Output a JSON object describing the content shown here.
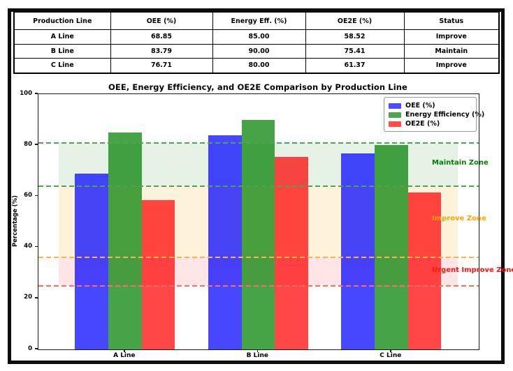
{
  "table": {
    "headers": [
      "Production Line",
      "OEE (%)",
      "Energy Eff. (%)",
      "OE2E (%)",
      "Status"
    ],
    "rows": [
      [
        "A Line",
        "68.85",
        "85.00",
        "58.52",
        "Improve"
      ],
      [
        "B Line",
        "83.79",
        "90.00",
        "75.41",
        "Maintain"
      ],
      [
        "C Line",
        "76.71",
        "80.00",
        "61.37",
        "Improve"
      ]
    ]
  },
  "chart_data": {
    "type": "bar",
    "title": "OEE, Energy Efficiency, and OE2E Comparison by Production Line",
    "xlabel": "",
    "ylabel": "Percentage (%)",
    "categories": [
      "A Line",
      "B Line",
      "C Line"
    ],
    "series": [
      {
        "name": "OEE (%)",
        "values": [
          68.85,
          83.79,
          76.71
        ],
        "bar_color": "rgba(0,0,255,0.72)",
        "legend_color": "#4d4dff"
      },
      {
        "name": "Energy Efficiency (%)",
        "values": [
          85.0,
          90.0,
          80.0
        ],
        "bar_color": "rgba(0,128,0,0.72)",
        "legend_color": "#4da64d"
      },
      {
        "name": "OE2E (%)",
        "values": [
          58.52,
          75.41,
          61.37
        ],
        "bar_color": "rgba(255,0,0,0.72)",
        "legend_color": "#ff4d4d"
      }
    ],
    "ylim": [
      0,
      100
    ],
    "yticks": [
      0,
      20,
      40,
      60,
      80,
      100
    ],
    "grid": false,
    "legend_position": "upper right",
    "zones": [
      {
        "label": "Maintain Zone",
        "from": 64,
        "to": 81,
        "fill": "rgba(0,128,0,0.10)",
        "label_color": "#008000",
        "label_value": 73
      },
      {
        "label": "Improve Zone",
        "from": 36,
        "to": 64,
        "fill": "rgba(255,165,0,0.14)",
        "label_color": "#ffa500",
        "label_value": 51
      },
      {
        "label": "Urgent Improve Zone",
        "from": 25,
        "to": 36,
        "fill": "rgba(255,0,0,0.10)",
        "label_color": "#ff1212",
        "label_value": 31
      }
    ],
    "threshold_lines": [
      {
        "value": 81,
        "color": "#4da64d"
      },
      {
        "value": 64,
        "color": "#4da64d"
      },
      {
        "value": 36,
        "color": "#ffb340"
      },
      {
        "value": 25,
        "color": "#ff6b6b"
      }
    ]
  }
}
